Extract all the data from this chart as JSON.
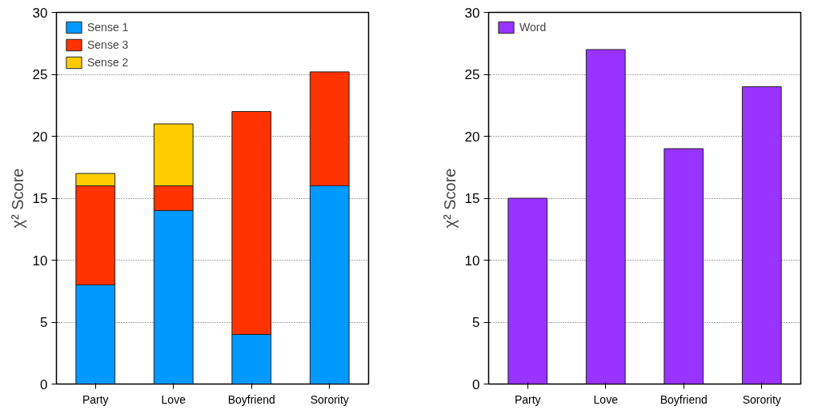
{
  "chart_data": [
    {
      "type": "bar",
      "stacked": true,
      "ylabel": "χ² Score",
      "categories": [
        "Party",
        "Love",
        "Boyfriend",
        "Sorority"
      ],
      "ylim": [
        0,
        30
      ],
      "yticks": [
        0,
        5,
        10,
        15,
        20,
        25,
        30
      ],
      "grid": "y",
      "legend": "top left",
      "series": [
        {
          "name": "Sense 1",
          "color": "#0099ff",
          "values": [
            8,
            14,
            4,
            16
          ]
        },
        {
          "name": "Sense 3",
          "color": "#ff3300",
          "values": [
            8,
            2,
            18,
            9.2
          ]
        },
        {
          "name": "Sense 2",
          "color": "#ffcc00",
          "values": [
            1,
            5,
            null,
            null
          ]
        }
      ]
    },
    {
      "type": "bar",
      "ylabel": "χ² Score",
      "categories": [
        "Party",
        "Love",
        "Boyfriend",
        "Sorority"
      ],
      "ylim": [
        0,
        30
      ],
      "yticks": [
        0,
        5,
        10,
        15,
        20,
        25,
        30
      ],
      "grid": "y",
      "legend": "top left",
      "series": [
        {
          "name": "Word",
          "color": "#9933ff",
          "values": [
            15,
            27,
            19,
            24
          ]
        }
      ]
    }
  ]
}
